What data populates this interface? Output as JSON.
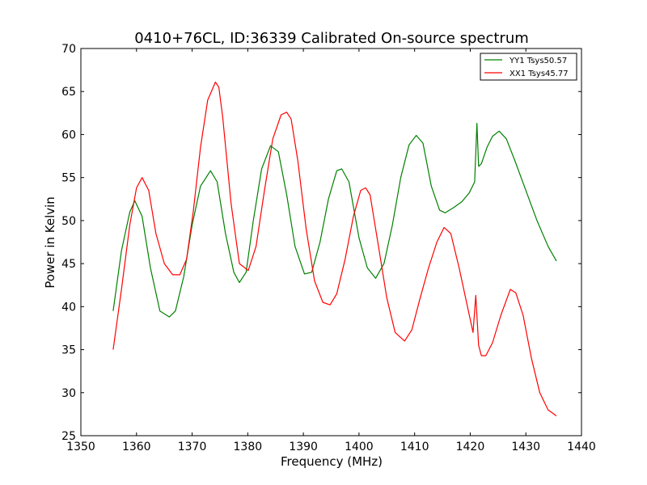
{
  "chart_data": {
    "type": "line",
    "title": "0410+76CL, ID:36339 Calibrated On-source spectrum",
    "xlabel": "Frequency (MHz)",
    "ylabel": "Power in Kelvin",
    "xlim": [
      1350,
      1440
    ],
    "ylim": [
      25,
      70
    ],
    "xticks": [
      1350,
      1360,
      1370,
      1380,
      1390,
      1400,
      1410,
      1420,
      1430,
      1440
    ],
    "yticks": [
      25,
      30,
      35,
      40,
      45,
      50,
      55,
      60,
      65,
      70
    ],
    "grid": false,
    "legend_position": "top-right",
    "series": [
      {
        "name": "YY1 Tsys50.57",
        "color": "#008000",
        "x": [
          1355.8,
          1357.3,
          1358.8,
          1359.7,
          1361.0,
          1362.5,
          1364.2,
          1365.9,
          1367.0,
          1368.5,
          1370.0,
          1371.5,
          1373.3,
          1374.5,
          1376.0,
          1377.5,
          1378.5,
          1379.7,
          1381.0,
          1382.5,
          1384.1,
          1385.5,
          1387.0,
          1388.5,
          1390.2,
          1391.5,
          1393.0,
          1394.5,
          1396.0,
          1396.9,
          1398.2,
          1400.0,
          1401.5,
          1403.0,
          1404.5,
          1406.0,
          1407.5,
          1409.0,
          1410.3,
          1411.5,
          1413.0,
          1414.5,
          1415.5,
          1417.0,
          1418.5,
          1419.8,
          1420.8,
          1421.2,
          1421.5,
          1422.0,
          1423.0,
          1424.0,
          1425.2,
          1426.5,
          1428.0,
          1430.0,
          1432.0,
          1434.0,
          1435.5
        ],
        "values": [
          39.5,
          46.5,
          51.0,
          52.3,
          50.5,
          44.5,
          39.5,
          38.8,
          39.5,
          43.5,
          49.5,
          54.0,
          55.8,
          54.5,
          48.5,
          44.0,
          42.8,
          44.0,
          50.0,
          56.0,
          58.7,
          58.0,
          53.0,
          47.0,
          43.8,
          44.0,
          47.5,
          52.5,
          55.8,
          56.0,
          54.5,
          48.0,
          44.5,
          43.3,
          45.0,
          49.5,
          55.0,
          58.8,
          59.9,
          59.0,
          54.0,
          51.2,
          50.9,
          51.5,
          52.2,
          53.2,
          54.5,
          61.3,
          56.3,
          56.6,
          58.5,
          59.8,
          60.4,
          59.5,
          57.0,
          53.5,
          50.0,
          47.0,
          45.3
        ]
      },
      {
        "name": "XX1 Tsys45.77",
        "color": "#ff0000",
        "x": [
          1355.8,
          1357.3,
          1358.8,
          1360.0,
          1361.0,
          1362.2,
          1363.5,
          1365.0,
          1366.5,
          1367.8,
          1369.0,
          1370.2,
          1371.5,
          1372.8,
          1374.2,
          1374.8,
          1375.5,
          1377.0,
          1378.5,
          1380.1,
          1381.5,
          1383.0,
          1384.5,
          1386.0,
          1387.0,
          1387.8,
          1389.0,
          1390.5,
          1392.0,
          1393.5,
          1394.8,
          1396.0,
          1397.5,
          1399.0,
          1400.3,
          1401.2,
          1402.0,
          1403.5,
          1405.0,
          1406.5,
          1408.2,
          1409.5,
          1411.0,
          1412.5,
          1414.0,
          1415.3,
          1416.5,
          1418.0,
          1419.5,
          1420.5,
          1421.0,
          1421.5,
          1422.0,
          1422.8,
          1424.0,
          1425.5,
          1427.2,
          1428.2,
          1429.5,
          1431.0,
          1432.5,
          1434.0,
          1435.5
        ],
        "values": [
          35.0,
          42.0,
          49.5,
          53.8,
          55.0,
          53.5,
          48.5,
          45.0,
          43.7,
          43.7,
          45.5,
          51.0,
          58.5,
          64.0,
          66.1,
          65.5,
          62.0,
          52.0,
          45.0,
          44.2,
          47.0,
          53.5,
          59.5,
          62.3,
          62.6,
          61.8,
          57.0,
          49.0,
          43.0,
          40.5,
          40.2,
          41.5,
          45.5,
          50.5,
          53.5,
          53.8,
          53.0,
          47.0,
          41.0,
          37.0,
          36.0,
          37.3,
          41.0,
          44.5,
          47.5,
          49.2,
          48.5,
          44.5,
          40.0,
          37.0,
          41.3,
          35.5,
          34.3,
          34.3,
          35.8,
          39.0,
          42.0,
          41.6,
          39.0,
          34.0,
          30.0,
          28.0,
          27.3
        ]
      }
    ]
  }
}
